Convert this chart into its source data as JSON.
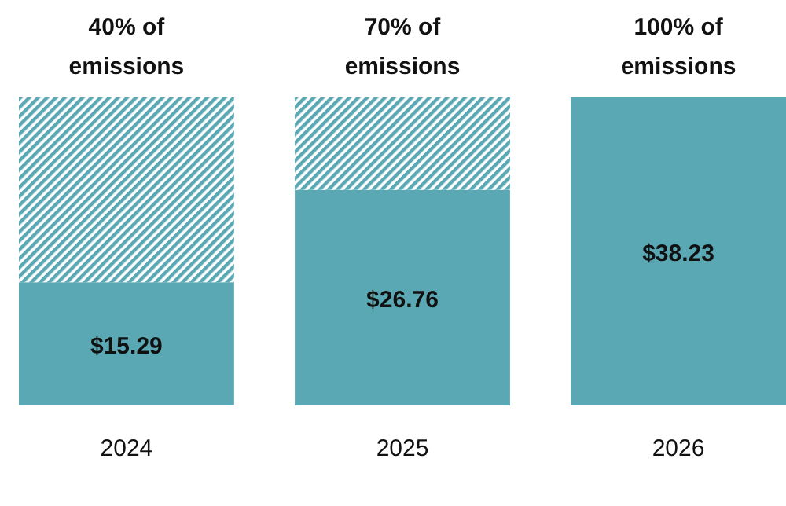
{
  "chart_data": {
    "type": "bar",
    "stacked": true,
    "categories": [
      "2024",
      "2025",
      "2026"
    ],
    "series": [
      {
        "color": "#5ba8b5",
        "values": [
          15.29,
          26.76,
          38.23
        ],
        "value_labels": [
          "$15.29",
          "$26.76",
          "$38.23"
        ]
      },
      {
        "color": "#5ba8b5",
        "values": [
          22.94,
          11.47,
          0
        ]
      }
    ],
    "annotations": [
      "40% of emissions",
      "70% of emissions",
      "100% of emissions"
    ]
  }
}
